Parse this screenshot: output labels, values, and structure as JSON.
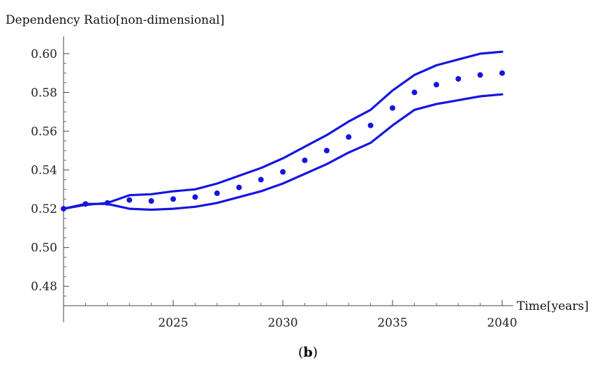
{
  "chart_data": {
    "type": "line",
    "ylabel": "Dependency Ratio[non-dimensional]",
    "xlabel": "Time[years]",
    "panel_label": "b",
    "xlim": [
      2020,
      2040
    ],
    "ylim": [
      0.47,
      0.605
    ],
    "x_ticks": [
      2025,
      2030,
      2035,
      2040
    ],
    "y_ticks": [
      0.48,
      0.5,
      0.52,
      0.54,
      0.56,
      0.58,
      0.6
    ],
    "color": "#1515e0",
    "x": [
      2020,
      2021,
      2022,
      2023,
      2024,
      2025,
      2026,
      2027,
      2028,
      2029,
      2030,
      2031,
      2032,
      2033,
      2034,
      2035,
      2036,
      2037,
      2038,
      2039,
      2040
    ],
    "series": [
      {
        "style": "line",
        "values": [
          0.52,
          0.522,
          0.523,
          0.527,
          0.5275,
          0.529,
          0.53,
          0.533,
          0.537,
          0.541,
          0.546,
          0.552,
          0.558,
          0.565,
          0.571,
          0.581,
          0.589,
          0.594,
          0.597,
          0.6,
          0.601
        ]
      },
      {
        "style": "dots",
        "values": [
          0.52,
          0.5225,
          0.523,
          0.5245,
          0.524,
          0.525,
          0.526,
          0.528,
          0.531,
          0.535,
          0.539,
          0.545,
          0.55,
          0.557,
          0.563,
          0.572,
          0.58,
          0.584,
          0.587,
          0.589,
          0.59
        ]
      },
      {
        "style": "line",
        "values": [
          0.52,
          0.5225,
          0.5225,
          0.52,
          0.5195,
          0.52,
          0.521,
          0.523,
          0.526,
          0.529,
          0.533,
          0.538,
          0.543,
          0.549,
          0.554,
          0.563,
          0.571,
          0.574,
          0.576,
          0.578,
          0.579
        ]
      }
    ]
  }
}
